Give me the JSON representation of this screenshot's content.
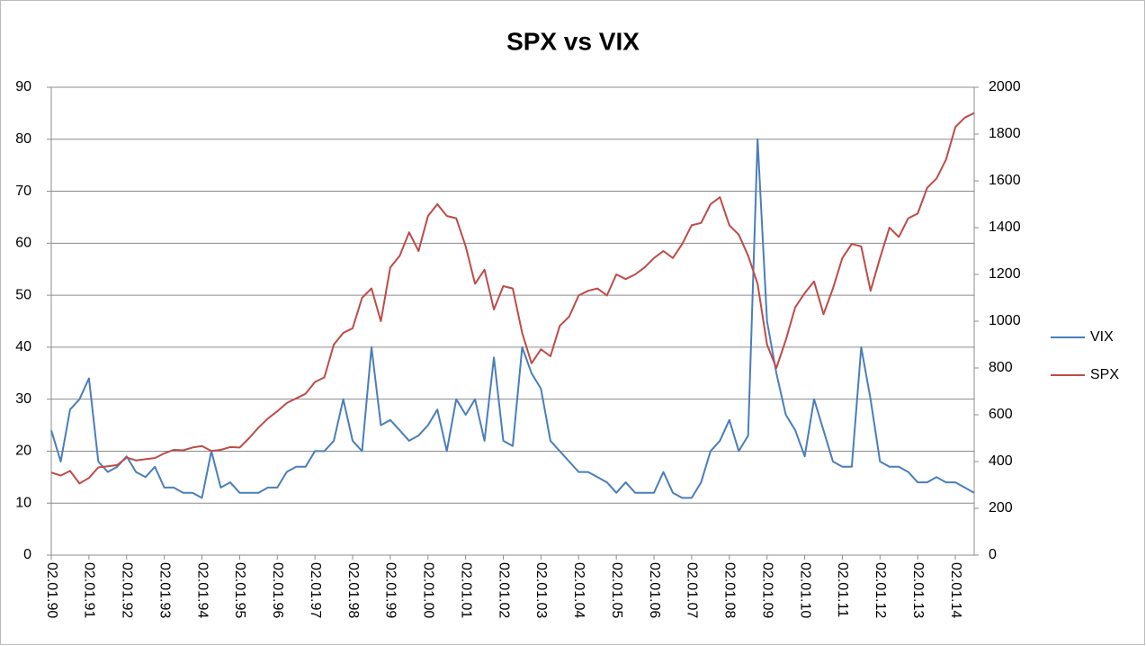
{
  "chart_data": {
    "type": "line",
    "title": "SPX vs  VIX",
    "categories": [
      "02.01.90",
      null,
      null,
      null,
      "02.01.91",
      null,
      null,
      null,
      "02.01.92",
      null,
      null,
      null,
      "02.01.93",
      null,
      null,
      null,
      "02.01.94",
      null,
      null,
      null,
      "02.01.95",
      null,
      null,
      null,
      "02.01.96",
      null,
      null,
      null,
      "02.01.97",
      null,
      null,
      null,
      "02.01.98",
      null,
      null,
      null,
      "02.01.99",
      null,
      null,
      null,
      "02.01.00",
      null,
      null,
      null,
      "02.01.01",
      null,
      null,
      null,
      "02.01.02",
      null,
      null,
      null,
      "02.01.03",
      null,
      null,
      null,
      "02.01.04",
      null,
      null,
      null,
      "02.01.05",
      null,
      null,
      null,
      "02.01.06",
      null,
      null,
      null,
      "02.01.07",
      null,
      null,
      null,
      "02.01.08",
      null,
      null,
      null,
      "02.01.09",
      null,
      null,
      null,
      "02.01.10",
      null,
      null,
      null,
      "02.01.11",
      null,
      null,
      null,
      "02.01.12",
      null,
      null,
      null,
      "02.01.13",
      null,
      null,
      null,
      "02.01.14",
      null,
      null
    ],
    "series": [
      {
        "name": "VIX",
        "color": "#4a7ebb",
        "axis": "y",
        "values": [
          24,
          18,
          28,
          30,
          34,
          18,
          16,
          17,
          19,
          16,
          15,
          17,
          13,
          13,
          12,
          12,
          11,
          20,
          13,
          14,
          12,
          12,
          12,
          13,
          13,
          16,
          17,
          17,
          20,
          20,
          22,
          30,
          22,
          20,
          40,
          25,
          26,
          24,
          22,
          23,
          25,
          28,
          20,
          30,
          27,
          30,
          22,
          38,
          22,
          21,
          40,
          35,
          32,
          22,
          20,
          18,
          16,
          16,
          15,
          14,
          12,
          14,
          12,
          12,
          12,
          16,
          12,
          11,
          11,
          14,
          20,
          22,
          26,
          20,
          23,
          80,
          45,
          35,
          27,
          24,
          19,
          30,
          24,
          18,
          17,
          17,
          40,
          30,
          18,
          17,
          17,
          16,
          14,
          14,
          15,
          14,
          14,
          13,
          12
        ]
      },
      {
        "name": "SPX",
        "color": "#be4b48",
        "axis": "y2",
        "values": [
          353,
          340,
          360,
          306,
          330,
          375,
          380,
          385,
          417,
          405,
          410,
          415,
          435,
          450,
          448,
          460,
          466,
          445,
          450,
          462,
          460,
          500,
          545,
          584,
          615,
          650,
          670,
          690,
          740,
          760,
          900,
          950,
          970,
          1100,
          1140,
          1000,
          1230,
          1280,
          1380,
          1300,
          1450,
          1500,
          1450,
          1440,
          1320,
          1160,
          1220,
          1050,
          1150,
          1140,
          950,
          820,
          880,
          850,
          980,
          1020,
          1110,
          1130,
          1140,
          1110,
          1200,
          1180,
          1200,
          1230,
          1270,
          1300,
          1270,
          1330,
          1410,
          1420,
          1500,
          1530,
          1410,
          1370,
          1280,
          1160,
          900,
          800,
          920,
          1060,
          1120,
          1170,
          1030,
          1140,
          1270,
          1330,
          1320,
          1130,
          1270,
          1400,
          1360,
          1440,
          1460,
          1570,
          1610,
          1690,
          1830,
          1870,
          1890
        ]
      }
    ],
    "ylim": [
      0,
      90
    ],
    "yticks": [
      0,
      10,
      20,
      30,
      40,
      50,
      60,
      70,
      80,
      90
    ],
    "y2lim": [
      0,
      2000
    ],
    "y2ticks": [
      0,
      200,
      400,
      600,
      800,
      1000,
      1200,
      1400,
      1600,
      1800,
      2000
    ],
    "grid": true,
    "legend": "right"
  }
}
